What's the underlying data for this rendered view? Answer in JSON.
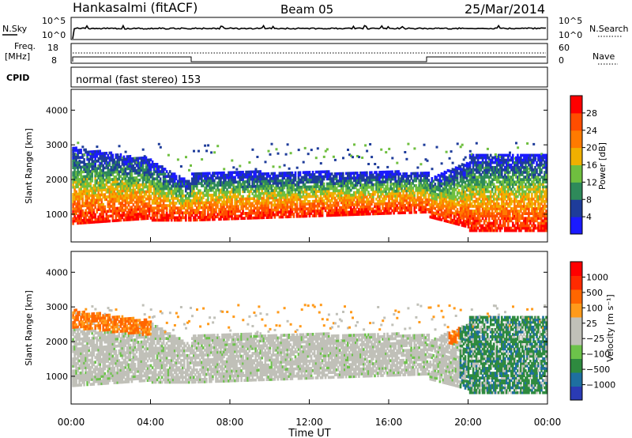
{
  "header": {
    "station": "Hankasalmi (fitACF)",
    "beam": "Beam 05",
    "date": "25/Mar/2014"
  },
  "noise_panel": {
    "left_label": "N.Sky",
    "right_label": "N.Search",
    "left_ticks": [
      "10^5",
      "10^0"
    ],
    "right_ticks": [
      "10^5",
      "10^0"
    ]
  },
  "freq_panel": {
    "left_label_1": "Freq.",
    "left_label_2": "[MHz]",
    "left_ticks": [
      "18",
      "8"
    ],
    "right_label": "Nave",
    "right_ticks": [
      "60",
      "0"
    ],
    "cpid_label": "CPID",
    "cpid_text": "normal (fast stereo) 153"
  },
  "colors": {
    "power": [
      "#1a1aff",
      "#1e3c9a",
      "#2e8a5a",
      "#6fbf3f",
      "#f0b000",
      "#ff7a00",
      "#ff4d00",
      "#ff0000"
    ],
    "velocity": [
      "#2a3bb5",
      "#1e6fa0",
      "#2e8a3f",
      "#6cc24a",
      "#c0c0b8",
      "#c0c0b8",
      "#ff9a1a",
      "#ff6600",
      "#ff2a00",
      "#ff0000"
    ]
  },
  "chart_data": [
    {
      "type": "heatmap",
      "name": "power",
      "ylabel": "Slant Range [km]",
      "yticks": [
        "4000",
        "3000",
        "2000",
        "1000"
      ],
      "ylim": [
        200,
        4600
      ],
      "xlim": [
        0,
        24
      ],
      "colorbar_label": "Power [dB]",
      "colorbar_ticks": [
        "28",
        "24",
        "20",
        "16",
        "12",
        "8",
        "4"
      ],
      "colorbar_range": [
        0,
        32
      ]
    },
    {
      "type": "heatmap",
      "name": "velocity",
      "ylabel": "Slant Range [km]",
      "yticks": [
        "4000",
        "3000",
        "2000",
        "1000"
      ],
      "ylim": [
        200,
        4600
      ],
      "xlim": [
        0,
        24
      ],
      "xticks": [
        "00:00",
        "04:00",
        "08:00",
        "12:00",
        "16:00",
        "20:00",
        "00:00"
      ],
      "xlabel": "Time UT",
      "colorbar_label": "Velocity [m s⁻¹]",
      "colorbar_ticks": [
        "1000",
        "500",
        "100",
        "25",
        "−25",
        "−100",
        "−500",
        "−1000"
      ]
    }
  ]
}
